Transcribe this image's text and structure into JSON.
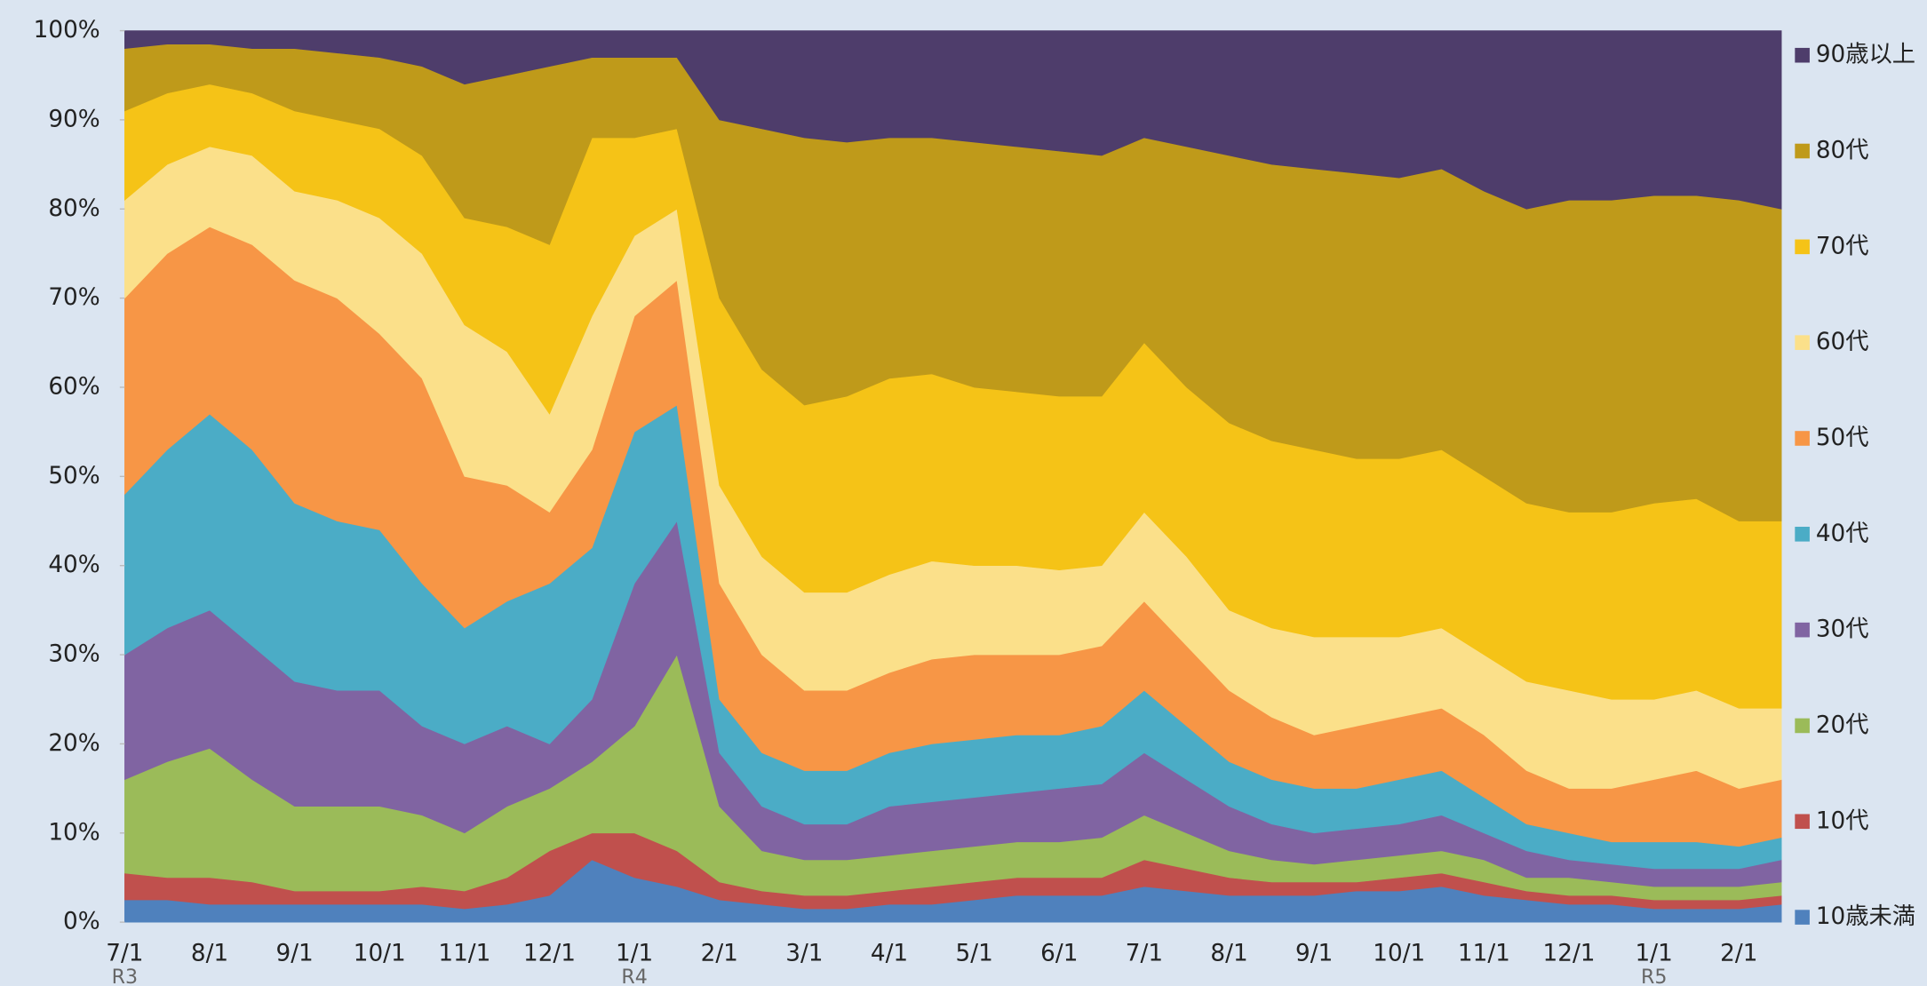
{
  "chart_data": {
    "type": "stacked_area_percent",
    "categories": [
      "7/1",
      null,
      "8/1",
      null,
      "9/1",
      null,
      "10/1",
      null,
      "11/1",
      null,
      "12/1",
      null,
      "1/1",
      null,
      "2/1",
      null,
      "3/1",
      null,
      "4/1",
      null,
      "5/1",
      null,
      "6/1",
      null,
      "7/1",
      null,
      "8/1",
      null,
      "9/1",
      null,
      "10/1",
      null,
      "11/1",
      null,
      "12/1",
      null,
      "1/1",
      null,
      "2/1",
      null
    ],
    "x_sublabels": [
      "R3",
      null,
      null,
      null,
      null,
      null,
      null,
      null,
      null,
      null,
      null,
      null,
      "R4",
      null,
      null,
      null,
      null,
      null,
      null,
      null,
      null,
      null,
      null,
      null,
      null,
      null,
      null,
      null,
      null,
      null,
      null,
      null,
      null,
      null,
      null,
      null,
      "R5",
      null,
      null,
      null
    ],
    "ylim": [
      0,
      100
    ],
    "yticks": [
      {
        "value": 0,
        "label": "0%"
      },
      {
        "value": 10,
        "label": "10%"
      },
      {
        "value": 20,
        "label": "20%"
      },
      {
        "value": 30,
        "label": "30%"
      },
      {
        "value": 40,
        "label": "40%"
      },
      {
        "value": 50,
        "label": "50%"
      },
      {
        "value": 60,
        "label": "60%"
      },
      {
        "value": 70,
        "label": "70%"
      },
      {
        "value": 80,
        "label": "80%"
      },
      {
        "value": 90,
        "label": "90%"
      },
      {
        "value": 100,
        "label": "100%"
      }
    ],
    "legend": "right",
    "series": [
      {
        "name": "10歳未満",
        "color": "#4f81bd",
        "values": [
          2.5,
          2.5,
          2,
          2,
          2,
          2,
          2,
          2,
          1.5,
          2,
          3,
          7,
          5,
          4,
          2.5,
          2,
          1.5,
          1.5,
          2,
          2,
          2.5,
          3,
          3,
          3,
          4,
          3.5,
          3,
          3,
          3,
          3.5,
          3.5,
          4,
          3,
          2.5,
          2,
          2,
          1.5,
          1.5,
          1.5,
          2
        ]
      },
      {
        "name": "10代",
        "color": "#c0504d",
        "values": [
          3,
          2.5,
          3,
          2.5,
          1.5,
          1.5,
          1.5,
          2,
          2,
          3,
          5,
          3,
          5,
          4,
          2,
          1.5,
          1.5,
          1.5,
          1.5,
          2,
          2,
          2,
          2,
          2,
          3,
          2.5,
          2,
          1.5,
          1.5,
          1,
          1.5,
          1.5,
          1.5,
          1,
          1,
          1,
          1,
          1,
          1,
          1
        ]
      },
      {
        "name": "20代",
        "color": "#9bbb59",
        "values": [
          10.5,
          13,
          14.5,
          11.5,
          9.5,
          9.5,
          9.5,
          8,
          6.5,
          8,
          7,
          8,
          12,
          22,
          8.5,
          4.5,
          4,
          4,
          4,
          4,
          4,
          4,
          4,
          4.5,
          5,
          4,
          3,
          2.5,
          2,
          2.5,
          2.5,
          2.5,
          2.5,
          1.5,
          2,
          1.5,
          1.5,
          1.5,
          1.5,
          1.5
        ]
      },
      {
        "name": "30代",
        "color": "#8064a2",
        "values": [
          14,
          15,
          15.5,
          15,
          14,
          13,
          13,
          10,
          10,
          9,
          5,
          7,
          16,
          15,
          6,
          5,
          4,
          4,
          5.5,
          5.5,
          5.5,
          5.5,
          6,
          6,
          7,
          6,
          5,
          4,
          3.5,
          3.5,
          3.5,
          4,
          3,
          3,
          2,
          2,
          2,
          2,
          2,
          2.5
        ]
      },
      {
        "name": "40代",
        "color": "#4bacc6",
        "values": [
          18,
          20,
          22,
          22,
          20,
          19,
          18,
          16,
          13,
          14,
          18,
          17,
          17,
          13,
          6,
          6,
          6,
          6,
          6,
          6.5,
          6.5,
          6.5,
          6,
          6.5,
          7,
          6,
          5,
          5,
          5,
          4.5,
          5,
          5,
          4,
          3,
          3,
          2.5,
          3,
          3,
          2.5,
          2.5
        ]
      },
      {
        "name": "50代",
        "color": "#f79646",
        "values": [
          22,
          22,
          21,
          23,
          25,
          25,
          22,
          23,
          17,
          13,
          8,
          11,
          13,
          14,
          13,
          11,
          9,
          9,
          9,
          9.5,
          9.5,
          9,
          9,
          9,
          10,
          9,
          8,
          7,
          6,
          7,
          7,
          7,
          7,
          6,
          5,
          6,
          7,
          8,
          6.5,
          6.5
        ]
      },
      {
        "name": "60代",
        "color": "#fbe08a",
        "values": [
          11,
          10,
          9,
          10,
          10,
          11,
          13,
          14,
          17,
          15,
          11,
          15,
          9,
          8,
          11,
          11,
          11,
          11,
          11,
          11,
          10,
          10,
          9.5,
          9,
          10,
          10,
          9,
          10,
          11,
          10,
          9,
          9,
          9,
          10,
          11,
          10,
          9,
          9,
          9,
          8
        ]
      },
      {
        "name": "70代",
        "color": "#f5c317",
        "values": [
          10,
          8,
          7,
          7,
          9,
          9,
          10,
          11,
          12,
          14,
          19,
          20,
          11,
          9,
          21,
          21,
          21,
          22,
          22,
          21,
          20,
          19.5,
          19.5,
          19,
          19,
          19,
          21,
          21,
          21,
          20,
          20,
          20,
          20,
          20,
          20,
          21,
          22,
          21.5,
          21,
          21
        ]
      },
      {
        "name": "80代",
        "color": "#bf9a1a",
        "values": [
          7,
          5.5,
          4.5,
          5,
          7,
          7.5,
          8,
          10,
          15,
          17,
          20,
          9,
          9,
          8,
          20,
          27,
          30,
          28.5,
          27,
          26.5,
          27.5,
          27.5,
          27.5,
          27,
          23,
          27,
          30,
          31,
          31.5,
          32,
          31.5,
          31.5,
          32,
          33,
          35,
          35,
          34.5,
          34,
          36,
          35
        ]
      },
      {
        "name": "90歳以上",
        "color": "#4e3d6b",
        "values": [
          2,
          1.5,
          1.5,
          2,
          2,
          2.5,
          3,
          4,
          6,
          5,
          4,
          3,
          3,
          3,
          10,
          11,
          12,
          12.5,
          12,
          12,
          12.5,
          13,
          13.5,
          14,
          12,
          13,
          14,
          15,
          15.5,
          16,
          16.5,
          15.5,
          18,
          20,
          19,
          19,
          18.5,
          18.5,
          19,
          20
        ]
      }
    ]
  }
}
